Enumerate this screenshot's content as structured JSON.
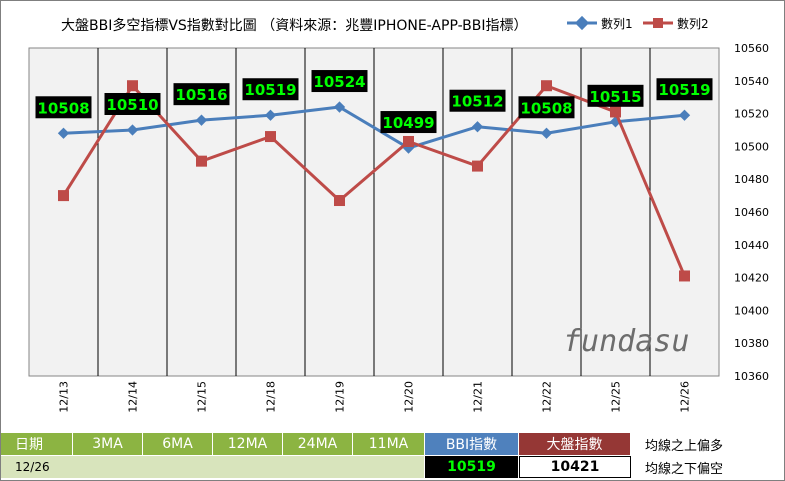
{
  "chart_data": {
    "type": "line",
    "title": "大盤BBI多空指標VS指數對比圖  （資料來源：兆豐IPHONE-APP-BBI指標）",
    "categories": [
      "12/13",
      "12/14",
      "12/15",
      "12/18",
      "12/19",
      "12/20",
      "12/21",
      "12/22",
      "12/25",
      "12/26"
    ],
    "series": [
      {
        "name": "數列1",
        "color": "#4a7ebb",
        "values": [
          10508,
          10510,
          10516,
          10519,
          10524,
          10499,
          10512,
          10508,
          10515,
          10519
        ]
      },
      {
        "name": "數列2",
        "color": "#be4b48",
        "values": [
          10470,
          10537,
          10491,
          10506,
          10467,
          10503,
          10488,
          10537,
          10521,
          10421
        ]
      }
    ],
    "ylim": [
      10360,
      10560
    ],
    "yticks": [
      10360,
      10380,
      10400,
      10420,
      10440,
      10460,
      10480,
      10500,
      10520,
      10540,
      10560
    ],
    "legend": "top-right",
    "grid": "vertical",
    "data_labels_series": "數列1",
    "watermark": "fundasu"
  },
  "table": {
    "header": [
      "日期",
      "3MA",
      "6MA",
      "12MA",
      "24MA",
      "11MA",
      "BBI指數",
      "大盤指數",
      "均線之上偏多"
    ],
    "row": {
      "date": "12/26",
      "bbi": "10519",
      "index": "10421",
      "note": "均線之下偏空"
    }
  }
}
